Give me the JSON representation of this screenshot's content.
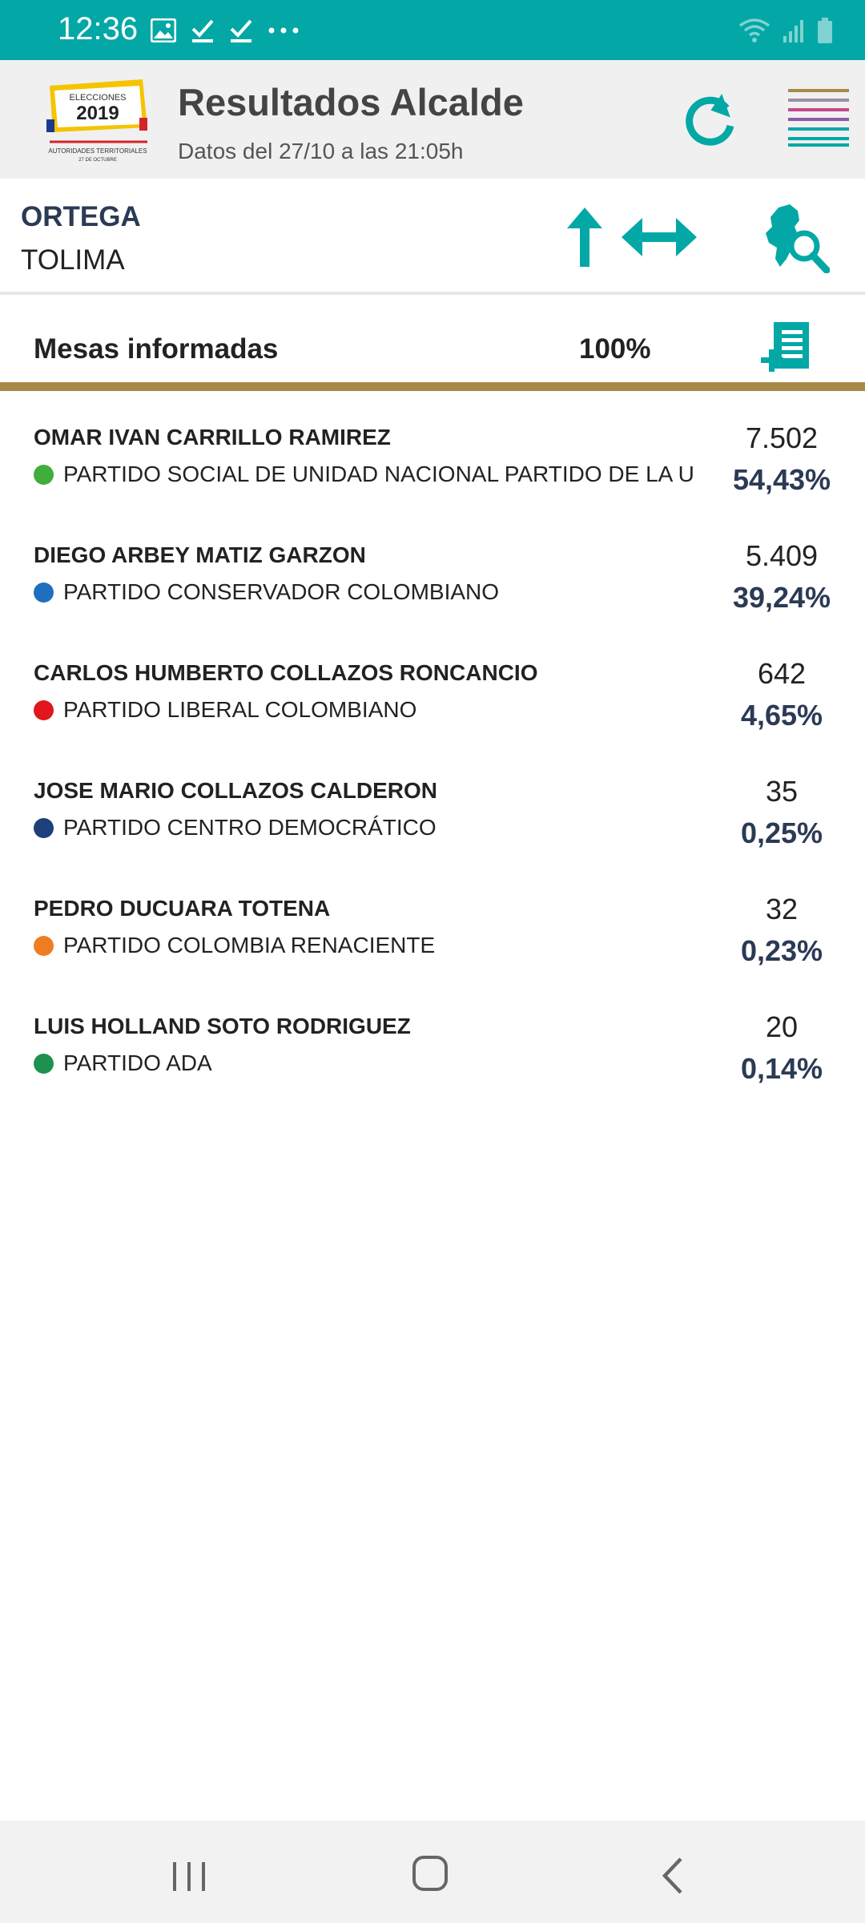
{
  "status_bar": {
    "time": "12:36"
  },
  "header": {
    "title": "Resultados Alcalde",
    "subtitle": "Datos del 27/10 a las 21:05h",
    "logo": {
      "line1": "ELECCIONES",
      "year": "2019",
      "line2": "AUTORIDADES TERRITORIALES",
      "line3": "27 DE OCTUBRE"
    }
  },
  "location": {
    "municipality": "ORTEGA",
    "department": "TOLIMA"
  },
  "mesas": {
    "label": "Mesas informadas",
    "percent": "100%"
  },
  "candidates": [
    {
      "name": "OMAR IVAN CARRILLO RAMIREZ",
      "party": "PARTIDO SOCIAL DE UNIDAD NACIONAL PARTIDO DE LA U",
      "party_color": "#3fae3b",
      "votes": "7.502",
      "percent": "54,43%"
    },
    {
      "name": "DIEGO ARBEY MATIZ GARZON",
      "party": "PARTIDO CONSERVADOR COLOMBIANO",
      "party_color": "#1f6fbf",
      "votes": "5.409",
      "percent": "39,24%"
    },
    {
      "name": "CARLOS HUMBERTO COLLAZOS RONCANCIO",
      "party": "PARTIDO LIBERAL COLOMBIANO",
      "party_color": "#e2161e",
      "votes": "642",
      "percent": "4,65%"
    },
    {
      "name": "JOSE MARIO COLLAZOS CALDERON",
      "party": "PARTIDO CENTRO DEMOCRÁTICO",
      "party_color": "#1d3f7a",
      "votes": "35",
      "percent": "0,25%"
    },
    {
      "name": "PEDRO DUCUARA TOTENA",
      "party": "PARTIDO COLOMBIA RENACIENTE",
      "party_color": "#ee7d22",
      "votes": "32",
      "percent": "0,23%"
    },
    {
      "name": "LUIS HOLLAND SOTO RODRIGUEZ",
      "party": "PARTIDO ADA",
      "party_color": "#1e9150",
      "votes": "20",
      "percent": "0,14%"
    }
  ],
  "colors": {
    "accent": "#03a8a6",
    "divider": "#a88a48",
    "dark_blue": "#2b3a55"
  }
}
